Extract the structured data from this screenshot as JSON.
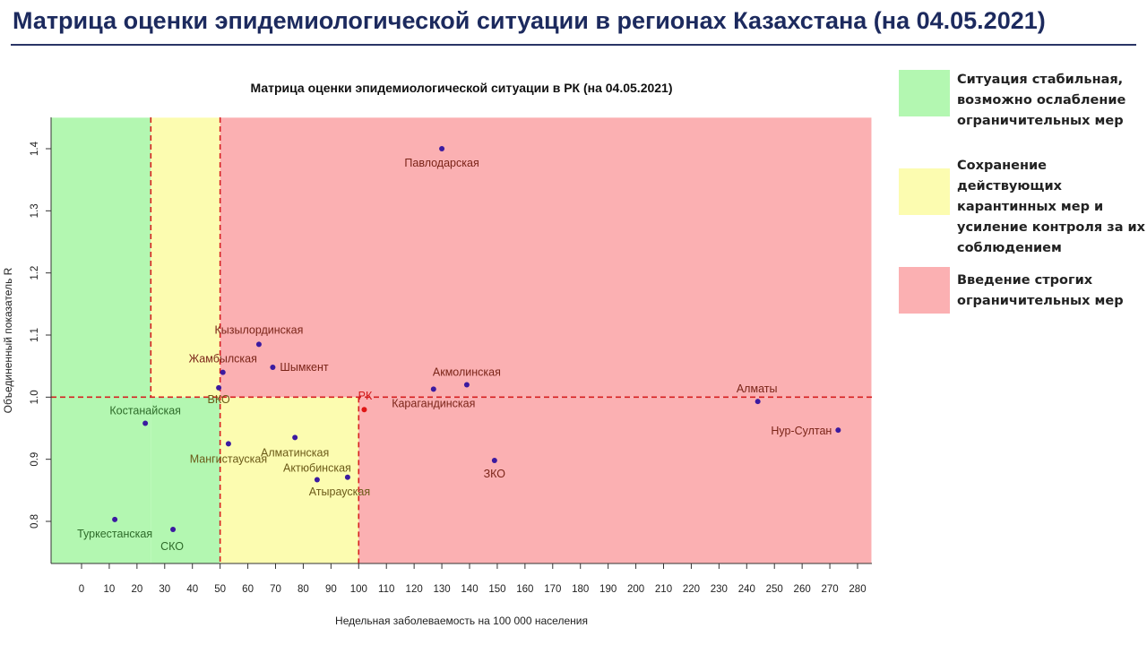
{
  "page": {
    "title": "Матрица оценки эпидемиологической ситуации в регионах Казахстана (на 04.05.2021)"
  },
  "colors": {
    "title": "#1c2a5e",
    "zone_green": "#b3f7b1",
    "zone_yellow": "#fcfcb0",
    "zone_red": "#fbb0b2",
    "threshold_line": "#d62020",
    "point": "#3b1aa0",
    "point_rk": "#e01515"
  },
  "legend": [
    {
      "color": "#b3f7b1",
      "text": "Ситуация стабильная, возможно ослабление ограничительных мер"
    },
    {
      "color": "#fcfcb0",
      "text": "Сохранение действующих карантинных мер и усиление контроля за их соблюдением"
    },
    {
      "color": "#fbb0b2",
      "text": "Введение строгих ограничительных мер"
    }
  ],
  "chart_data": {
    "type": "scatter",
    "title": "Матрица оценки эпидемиологической ситуации в РК (на 04.05.2021)",
    "xlabel": "Недельная заболеваемость на 100 000 населения",
    "ylabel": "Объединенный показатель R",
    "xlim": [
      -11,
      285
    ],
    "ylim": [
      0.725,
      1.45
    ],
    "x_ticks": [
      0,
      10,
      20,
      30,
      40,
      50,
      60,
      70,
      80,
      90,
      100,
      110,
      120,
      130,
      140,
      150,
      160,
      170,
      180,
      190,
      200,
      210,
      220,
      230,
      240,
      250,
      260,
      270,
      280
    ],
    "y_ticks": [
      0.8,
      0.9,
      1.0,
      1.1,
      1.2,
      1.3,
      1.4
    ],
    "y_tick_labels": [
      "0.8",
      "0.9",
      "1.0",
      "1.1",
      "1.2",
      "1.3",
      "1.4"
    ],
    "grid": false,
    "thresholds": {
      "x": [
        25,
        50,
        100
      ],
      "y": [
        1.0
      ]
    },
    "zones": [
      {
        "x": [
          -11,
          25
        ],
        "y": [
          0.725,
          1.45
        ],
        "zone": "green"
      },
      {
        "x": [
          25,
          50
        ],
        "y": [
          0.725,
          1.0
        ],
        "zone": "green"
      },
      {
        "x": [
          25,
          50
        ],
        "y": [
          1.0,
          1.45
        ],
        "zone": "yellow"
      },
      {
        "x": [
          50,
          100
        ],
        "y": [
          0.725,
          1.0
        ],
        "zone": "yellow"
      },
      {
        "x": [
          50,
          285
        ],
        "y": [
          1.0,
          1.45
        ],
        "zone": "red"
      },
      {
        "x": [
          100,
          285
        ],
        "y": [
          0.725,
          1.0
        ],
        "zone": "red"
      }
    ],
    "points": [
      {
        "label": "Павлодарская",
        "x": 130,
        "y": 1.4
      },
      {
        "label": "Кызылординская",
        "x": 64,
        "y": 1.085
      },
      {
        "label": "Жамбылская",
        "x": 51,
        "y": 1.04
      },
      {
        "label": "Шымкент",
        "x": 69,
        "y": 1.048
      },
      {
        "label": "ВКО",
        "x": 49.5,
        "y": 1.015
      },
      {
        "label": "Акмолинская",
        "x": 139,
        "y": 1.02
      },
      {
        "label": "Карагандинская",
        "x": 127,
        "y": 1.013
      },
      {
        "label": "РК",
        "x": 102,
        "y": 0.98
      },
      {
        "label": "Алматы",
        "x": 244,
        "y": 0.993
      },
      {
        "label": "Нур-Султан",
        "x": 273,
        "y": 0.947
      },
      {
        "label": "Костанайская",
        "x": 23,
        "y": 0.958
      },
      {
        "label": "Мангистауская",
        "x": 53,
        "y": 0.925
      },
      {
        "label": "Алматинская",
        "x": 77,
        "y": 0.935
      },
      {
        "label": "Актюбинская",
        "x": 85,
        "y": 0.867
      },
      {
        "label": "Атырауская",
        "x": 96,
        "y": 0.871
      },
      {
        "label": "ЗКО",
        "x": 149,
        "y": 0.898
      },
      {
        "label": "Туркестанская",
        "x": 12,
        "y": 0.803
      },
      {
        "label": "СКО",
        "x": 33,
        "y": 0.787
      }
    ]
  }
}
